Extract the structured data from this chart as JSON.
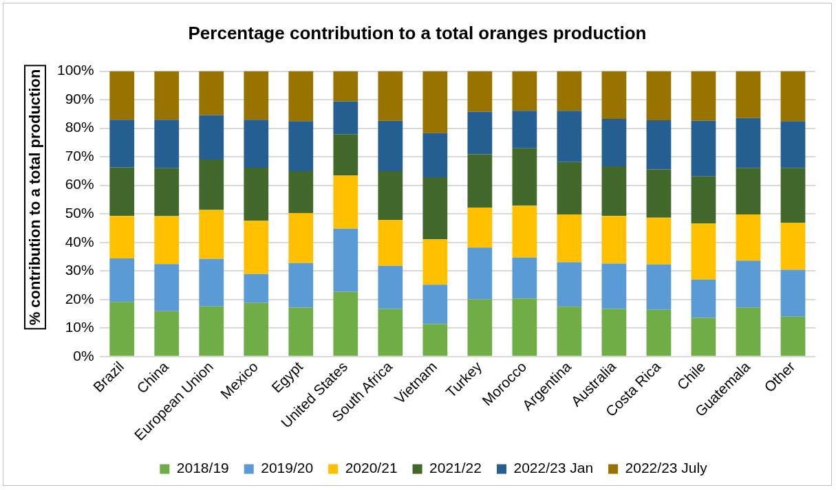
{
  "chart_data": {
    "type": "bar",
    "stacked": true,
    "title": "Percentage contribution to a total oranges production",
    "ylabel": "% contribution to a total production",
    "categories": [
      "Brazil",
      "China",
      "European Union",
      "Mexico",
      "Egypt",
      "United States",
      "South Africa",
      "Vietnam",
      "Turkey",
      "Morocco",
      "Argentina",
      "Australia",
      "Costa Rica",
      "Chile",
      "Guatemala",
      "Other"
    ],
    "series": [
      {
        "name": "2018/19",
        "color": "#70ad47",
        "values": [
          19.2,
          15.9,
          17.6,
          18.8,
          17.2,
          22.7,
          16.7,
          11.4,
          20.1,
          20.4,
          17.5,
          16.7,
          16.4,
          13.6,
          17.1,
          14.0
        ]
      },
      {
        "name": "2019/20",
        "color": "#5b9bd5",
        "values": [
          15.2,
          16.5,
          16.6,
          10.1,
          15.6,
          22.1,
          15.1,
          13.8,
          18.1,
          14.3,
          15.6,
          15.9,
          15.9,
          13.4,
          16.5,
          16.4
        ]
      },
      {
        "name": "2020/21",
        "color": "#ffc000",
        "values": [
          14.9,
          16.8,
          17.2,
          18.7,
          17.5,
          18.6,
          16.0,
          15.9,
          14.0,
          18.2,
          16.7,
          16.7,
          16.4,
          19.7,
          16.2,
          16.5
        ]
      },
      {
        "name": "2021/22",
        "color": "#43682b",
        "values": [
          17.0,
          16.8,
          17.7,
          18.6,
          14.7,
          14.5,
          17.2,
          21.7,
          18.7,
          20.1,
          18.4,
          17.4,
          16.9,
          16.4,
          16.3,
          19.2
        ]
      },
      {
        "name": "2022/23 Jan",
        "color": "#255e91",
        "values": [
          16.7,
          17.0,
          15.5,
          16.8,
          17.5,
          11.5,
          17.6,
          15.5,
          14.9,
          13.1,
          17.9,
          16.6,
          17.2,
          19.6,
          17.5,
          16.4
        ]
      },
      {
        "name": "2022/23 July",
        "color": "#997300",
        "values": [
          17.0,
          17.0,
          15.4,
          17.0,
          17.5,
          10.6,
          17.4,
          21.7,
          14.2,
          13.9,
          13.9,
          16.7,
          17.2,
          17.3,
          16.4,
          17.5
        ]
      }
    ],
    "ylim": [
      0,
      100
    ],
    "yticks": [
      {
        "value": 0,
        "label": "0%"
      },
      {
        "value": 10,
        "label": "10%"
      },
      {
        "value": 20,
        "label": "20%"
      },
      {
        "value": 30,
        "label": "30%"
      },
      {
        "value": 40,
        "label": "40%"
      },
      {
        "value": 50,
        "label": "50%"
      },
      {
        "value": 60,
        "label": "60%"
      },
      {
        "value": 70,
        "label": "70%"
      },
      {
        "value": 80,
        "label": "80%"
      },
      {
        "value": 90,
        "label": "90%"
      },
      {
        "value": 100,
        "label": "100%"
      }
    ],
    "grid": "y",
    "legend": "bottom"
  }
}
